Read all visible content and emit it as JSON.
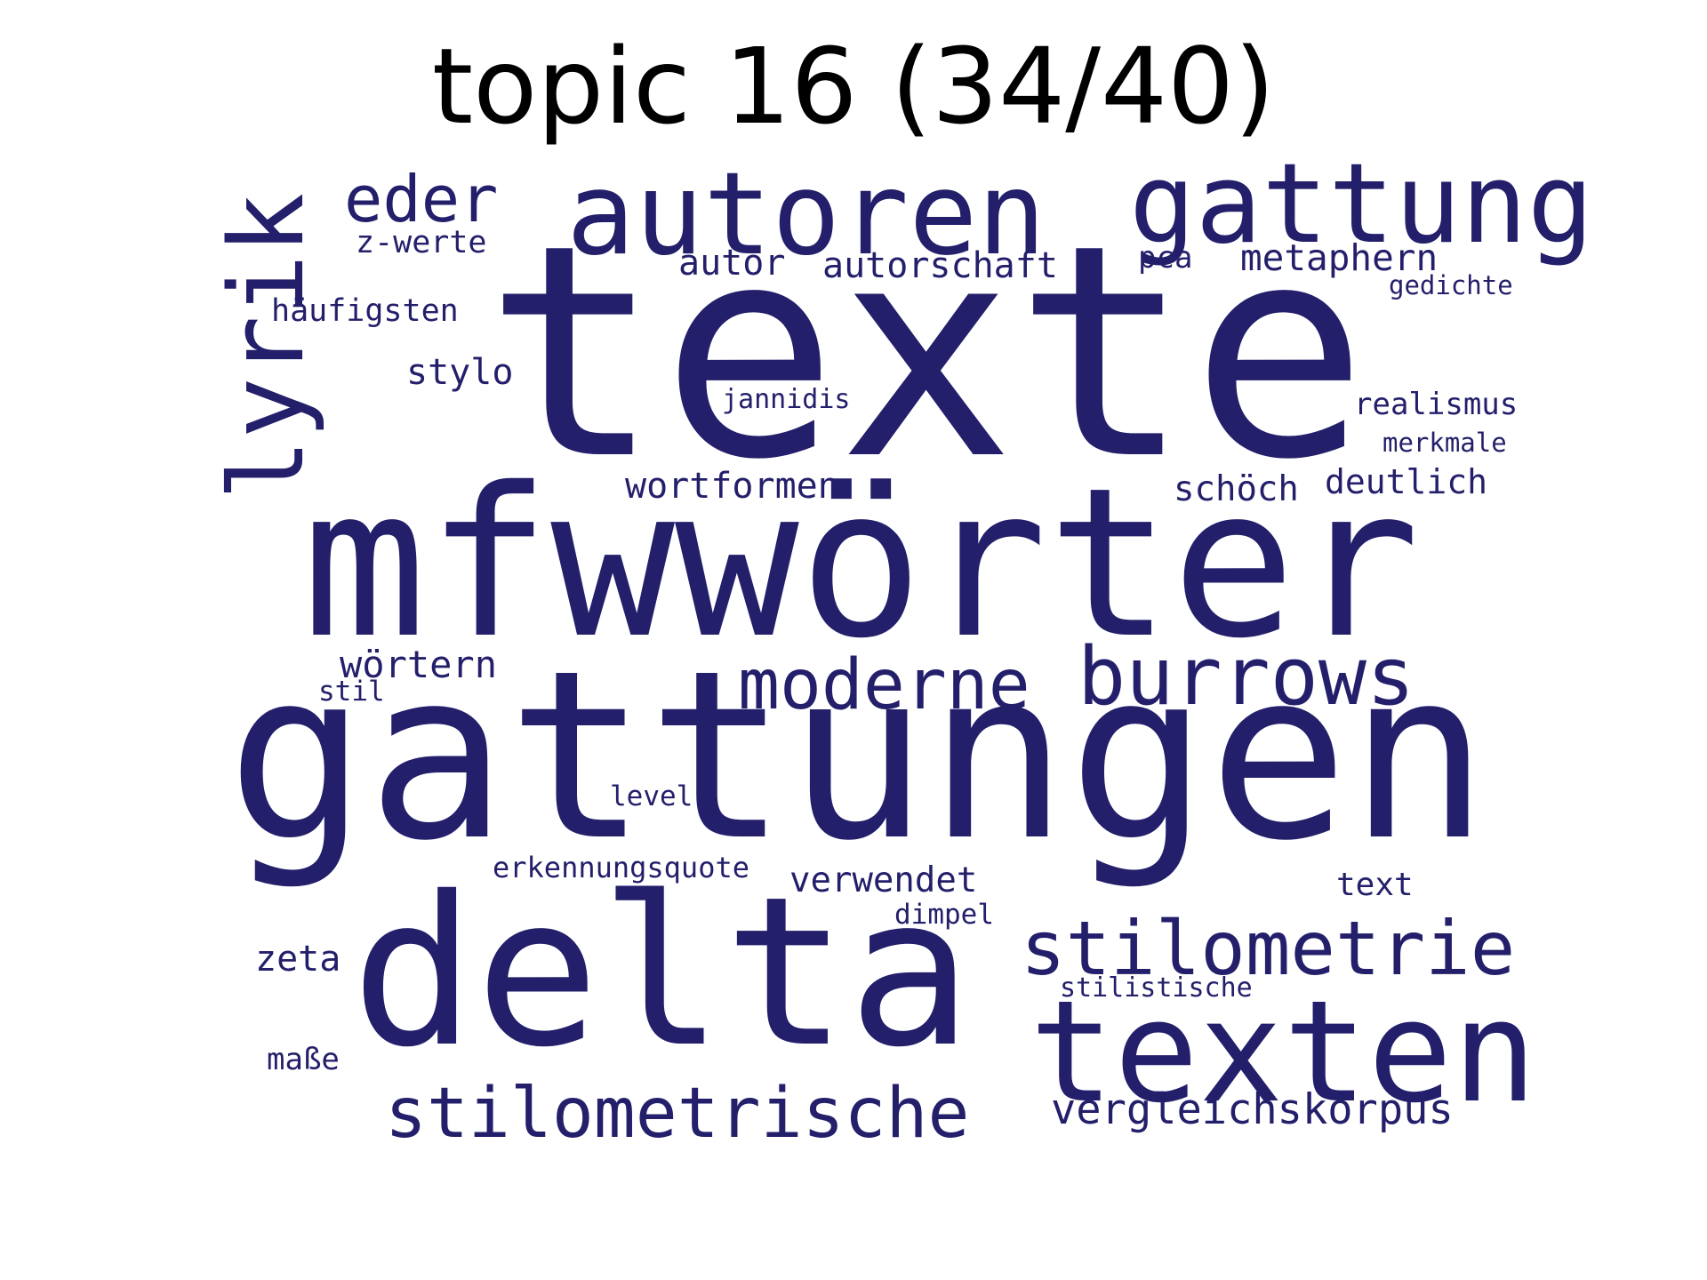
{
  "title": "topic 16 (34/40)",
  "colors": {
    "word": "#231f6b",
    "title": "#000000",
    "background": "#ffffff"
  },
  "words": [
    "texte",
    "gattungen",
    "mfwwörter",
    "delta",
    "texten",
    "autoren",
    "gattung",
    "lyrik",
    "burrows",
    "moderne",
    "stilometrie",
    "stilometrische",
    "eder",
    "vergleichskorpus",
    "metaphern",
    "autorschaft",
    "autor",
    "wörtern",
    "stylo",
    "wortformen",
    "schöch",
    "deutlich",
    "verwendet",
    "realismus",
    "häufigsten",
    "zeta",
    "z-werte",
    "erkennungsquote",
    "text",
    "maße",
    "jannidis",
    "pca",
    "level",
    "merkmale",
    "gedichte",
    "stilistische",
    "dimpel",
    "stil"
  ]
}
